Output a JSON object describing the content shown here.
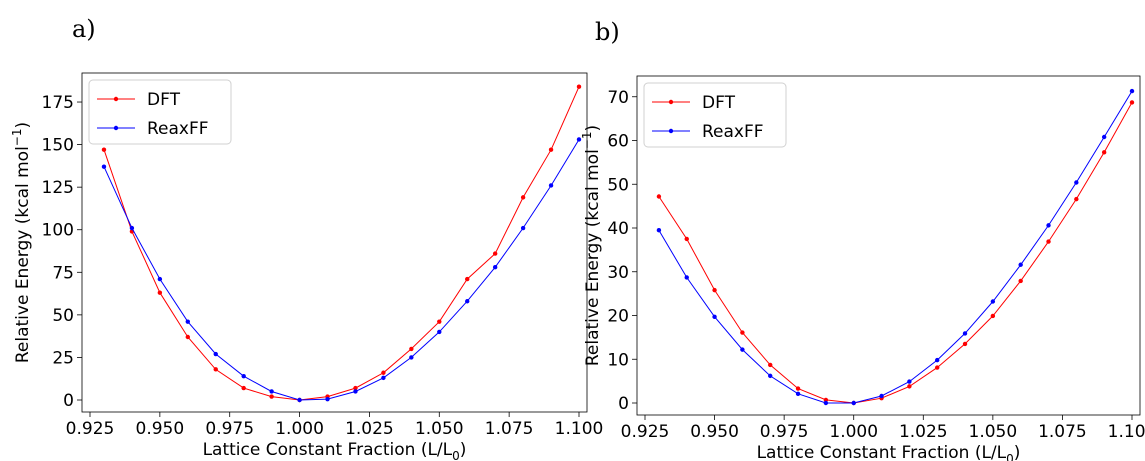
{
  "panels": [
    {
      "label": "a)"
    },
    {
      "label": "b)"
    }
  ],
  "chart_data": [
    {
      "type": "line",
      "xlabel": "Lattice Constant Fraction (L/L",
      "xlabel_sub": "0",
      "xlabel_end": ")",
      "ylabel": "Relative Energy (kcal mol",
      "ylabel_sup": "−1",
      "ylabel_end": ")",
      "xlim": [
        0.925,
        1.1
      ],
      "ylim": [
        0,
        185
      ],
      "xticks": [
        0.925,
        0.95,
        0.975,
        1.0,
        1.025,
        1.05,
        1.075,
        1.1
      ],
      "xtick_labels": [
        "0.925",
        "0.950",
        "0.975",
        "1.000",
        "1.025",
        "1.050",
        "1.075",
        "1.100"
      ],
      "yticks": [
        0,
        25,
        50,
        75,
        100,
        125,
        150,
        175
      ],
      "ytick_labels": [
        "0",
        "25",
        "50",
        "75",
        "100",
        "125",
        "150",
        "175"
      ],
      "legend": "top-left",
      "grid": false,
      "x": [
        0.93,
        0.94,
        0.95,
        0.96,
        0.97,
        0.98,
        0.99,
        1.0,
        1.01,
        1.02,
        1.03,
        1.04,
        1.05,
        1.06,
        1.07,
        1.08,
        1.09,
        1.1
      ],
      "series": [
        {
          "name": "DFT",
          "color": "#ff0000",
          "values": [
            147,
            99,
            63,
            37,
            18,
            7,
            2,
            0,
            2,
            7,
            16,
            30,
            46,
            71,
            86,
            119,
            147,
            184
          ]
        },
        {
          "name": "ReaxFF",
          "color": "#0000ff",
          "values": [
            137,
            101,
            71,
            46,
            27,
            14,
            5,
            0,
            0.5,
            5,
            13,
            25,
            40,
            58,
            78,
            101,
            126,
            153
          ]
        }
      ]
    },
    {
      "type": "line",
      "xlabel": "Lattice Constant Fraction (L/L",
      "xlabel_sub": "0",
      "xlabel_end": ")",
      "ylabel": "Relative Energy (kcal mol",
      "ylabel_sup": "−1",
      "ylabel_end": ")",
      "xlim": [
        0.925,
        1.1
      ],
      "ylim": [
        0,
        72
      ],
      "xticks": [
        0.925,
        0.95,
        0.975,
        1.0,
        1.025,
        1.05,
        1.075,
        1.1
      ],
      "xtick_labels": [
        "0.925",
        "0.950",
        "0.975",
        "1.000",
        "1.025",
        "1.050",
        "1.075",
        "1.100"
      ],
      "yticks": [
        0,
        10,
        20,
        30,
        40,
        50,
        60,
        70
      ],
      "ytick_labels": [
        "0",
        "10",
        "20",
        "30",
        "40",
        "50",
        "60",
        "70"
      ],
      "legend": "top-left",
      "grid": false,
      "x": [
        0.93,
        0.94,
        0.95,
        0.96,
        0.97,
        0.98,
        0.99,
        1.0,
        1.01,
        1.02,
        1.03,
        1.04,
        1.05,
        1.06,
        1.07,
        1.08,
        1.09,
        1.1
      ],
      "series": [
        {
          "name": "DFT",
          "color": "#ff0000",
          "values": [
            47.2,
            37.5,
            25.8,
            16.1,
            8.7,
            3.3,
            0.7,
            0,
            1.1,
            3.8,
            8.1,
            13.5,
            19.9,
            27.9,
            36.9,
            46.6,
            57.3,
            68.7
          ]
        },
        {
          "name": "ReaxFF",
          "color": "#0000ff",
          "values": [
            39.5,
            28.7,
            19.7,
            12.2,
            6.2,
            2.1,
            0,
            0,
            1.6,
            4.9,
            9.8,
            15.9,
            23.2,
            31.6,
            40.6,
            50.4,
            60.8,
            71.3
          ]
        }
      ]
    }
  ]
}
